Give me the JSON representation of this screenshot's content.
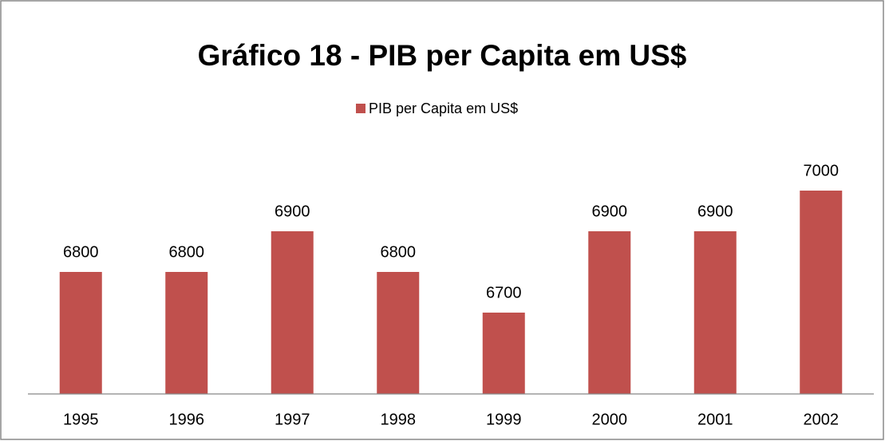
{
  "chart_data": {
    "type": "bar",
    "title": "Gráfico 18 - PIB per Capita em US$",
    "categories": [
      "1995",
      "1996",
      "1997",
      "1998",
      "1999",
      "2000",
      "2001",
      "2002"
    ],
    "series": [
      {
        "name": "PIB per Capita em US$",
        "color": "#c0504d",
        "values": [
          6800,
          6800,
          6900,
          6800,
          6700,
          6900,
          6900,
          7000
        ]
      }
    ],
    "ylim": [
      6500,
      7200
    ],
    "legend": "top"
  }
}
